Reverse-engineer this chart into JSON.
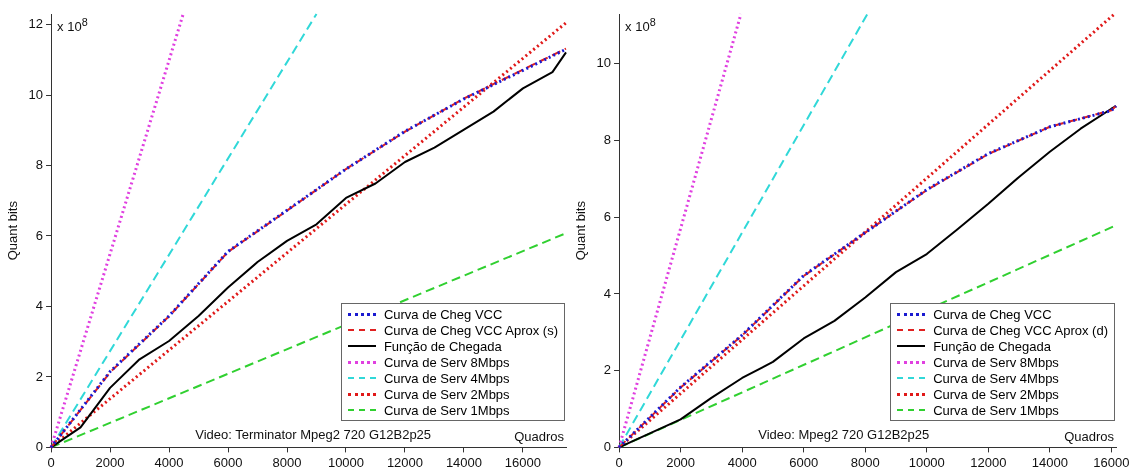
{
  "chart_data": [
    {
      "type": "line",
      "xlabel": "Quadros",
      "ylabel": "Quant bits",
      "xlim": [
        0,
        17460
      ],
      "ylim": [
        0,
        12.3
      ],
      "xticks": [
        0,
        2000,
        4000,
        6000,
        8000,
        10000,
        12000,
        14000,
        16000
      ],
      "yticks": [
        0,
        2,
        4,
        6,
        8,
        10,
        12
      ],
      "grid": false,
      "legend": "bottom right",
      "marker": "none",
      "annotations": [
        "x 10$^{8}$",
        "Video: Terminator Mpeg2 720 G12B2p25"
      ],
      "series": [
        {
          "name": "Curva de Cheg VCC",
          "color": "#1a1ad0",
          "line_style": "dotted",
          "x": [
            0,
            2000,
            4000,
            6000,
            8000,
            10000,
            12000,
            14000,
            16000,
            17460
          ],
          "values": [
            0,
            2.15,
            3.73,
            5.56,
            6.73,
            7.9,
            8.97,
            9.89,
            10.7,
            11.3
          ]
        },
        {
          "name": "Curva de Cheg VCC Aprox (s)",
          "color": "#e02020",
          "line_style": "dashed",
          "x": [
            0,
            2000,
            4000,
            6000,
            8000,
            10000,
            12000,
            14000,
            16000,
            17460
          ],
          "values": [
            0,
            2.13,
            3.72,
            5.55,
            6.72,
            7.9,
            8.96,
            9.9,
            10.72,
            11.32
          ]
        },
        {
          "name": "Função de Chegada",
          "color": "#000000",
          "line_style": "solid",
          "x": [
            0,
            1000,
            2000,
            3000,
            4000,
            5000,
            6000,
            7000,
            8000,
            9000,
            10000,
            11000,
            12000,
            13000,
            14000,
            15000,
            16000,
            17000,
            17460
          ],
          "values": [
            0,
            0.57,
            1.69,
            2.5,
            3.02,
            3.73,
            4.54,
            5.26,
            5.86,
            6.33,
            7.08,
            7.49,
            8.1,
            8.51,
            9.02,
            9.53,
            10.19,
            10.65,
            11.21
          ]
        },
        {
          "name": "Curva de Serv 8Mbps",
          "color": "#e040e0",
          "line_style": "dotted",
          "x": [
            0,
            4480
          ],
          "values": [
            0,
            12.3
          ]
        },
        {
          "name": "Curva de Serv 4Mbps",
          "color": "#30d8d8",
          "line_style": "dashed",
          "x": [
            0,
            9000
          ],
          "values": [
            0,
            12.3
          ]
        },
        {
          "name": "Curva de Serv 2Mbps",
          "color": "#e01818",
          "line_style": "dotted",
          "x": [
            0,
            17460
          ],
          "values": [
            0,
            12.05
          ]
        },
        {
          "name": "Curva de Serv 1Mbps",
          "color": "#30d030",
          "line_style": "dashed",
          "x": [
            0,
            17460
          ],
          "values": [
            0,
            6.08
          ]
        }
      ]
    },
    {
      "type": "line",
      "xlabel": "Quadros",
      "ylabel": "Quant bits",
      "xlim": [
        0,
        16150
      ],
      "ylim": [
        0,
        11.3
      ],
      "xticks": [
        0,
        2000,
        4000,
        6000,
        8000,
        10000,
        12000,
        14000,
        16000
      ],
      "yticks": [
        0,
        2,
        4,
        6,
        8,
        10
      ],
      "grid": false,
      "legend": "bottom right",
      "marker": "none",
      "annotations": [
        "x 10$^{8}$",
        "Video: Mpeg2 720 G12B2p25"
      ],
      "series": [
        {
          "name": "Curva de Cheg VCC",
          "color": "#1a1ad0",
          "line_style": "dotted",
          "x": [
            0,
            2000,
            4000,
            6000,
            8000,
            10000,
            12000,
            14000,
            16000,
            16150
          ],
          "values": [
            0,
            1.57,
            2.93,
            4.48,
            5.6,
            6.72,
            7.66,
            8.36,
            8.78,
            8.9
          ]
        },
        {
          "name": "Curva de Cheg VCC Aprox (d)",
          "color": "#e02020",
          "line_style": "dashed",
          "x": [
            0,
            2000,
            4000,
            6000,
            8000,
            10000,
            12000,
            14000,
            16000,
            16150
          ],
          "values": [
            0,
            1.56,
            2.92,
            4.47,
            5.6,
            6.71,
            7.65,
            8.36,
            8.79,
            8.9
          ]
        },
        {
          "name": "Função de Chegada",
          "color": "#000000",
          "line_style": "solid",
          "x": [
            0,
            2000,
            3000,
            4000,
            5000,
            6000,
            7000,
            8000,
            9000,
            10000,
            11000,
            12000,
            13000,
            14000,
            15000,
            16000,
            16150
          ],
          "values": [
            0,
            0.73,
            1.29,
            1.81,
            2.23,
            2.84,
            3.3,
            3.91,
            4.57,
            5.04,
            5.69,
            6.35,
            7.05,
            7.71,
            8.31,
            8.83,
            8.9
          ]
        },
        {
          "name": "Curva de Serv 8Mbps",
          "color": "#e040e0",
          "line_style": "dotted",
          "x": [
            0,
            3960
          ],
          "values": [
            0,
            11.3
          ]
        },
        {
          "name": "Curva de Serv 4Mbps",
          "color": "#30d8d8",
          "line_style": "dashed",
          "x": [
            0,
            8070
          ],
          "values": [
            0,
            11.3
          ]
        },
        {
          "name": "Curva de Serv 2Mbps",
          "color": "#e01818",
          "line_style": "dotted",
          "x": [
            0,
            16100
          ],
          "values": [
            0,
            11.3
          ]
        },
        {
          "name": "Curva de Serv 1Mbps",
          "color": "#30d030",
          "line_style": "dashed",
          "x": [
            0,
            16150
          ],
          "values": [
            0,
            5.79
          ]
        }
      ]
    }
  ]
}
